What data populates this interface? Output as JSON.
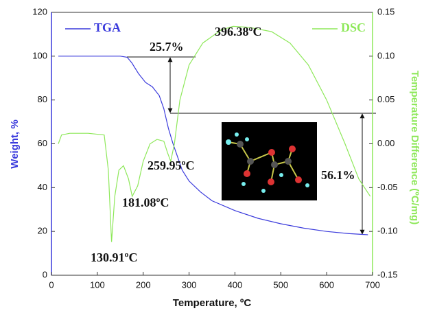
{
  "chart_data": {
    "type": "line",
    "xlabel": "Temperature, ºC",
    "ylabel": "Weight, %",
    "y2label": "Temperature Difference (ºC/mg)",
    "xlim": [
      0,
      700
    ],
    "xticks": [
      0,
      100,
      200,
      300,
      400,
      500,
      600,
      700
    ],
    "ylim": [
      0,
      120
    ],
    "yticks": [
      0,
      20,
      40,
      60,
      80,
      100,
      120
    ],
    "y2lim": [
      -0.15,
      0.15
    ],
    "y2ticks": [
      -0.15,
      {
        "value": -0.1,
        "label": "-0.10"
      },
      -0.05,
      {
        "value": 0,
        "label": "0.00"
      },
      0.05,
      {
        "value": 0.1,
        "label": "0.10"
      },
      0.15
    ],
    "series": [
      {
        "name": "TGA",
        "color": "#3a3adc",
        "x": [
          15,
          100,
          150,
          165,
          175,
          190,
          205,
          220,
          235,
          245,
          255,
          265,
          275,
          285,
          300,
          325,
          350,
          400,
          450,
          500,
          550,
          600,
          650,
          690
        ],
        "values": [
          100,
          100,
          100,
          99.5,
          97,
          92,
          88,
          86,
          82,
          76,
          67,
          60,
          54,
          48,
          43,
          38,
          34,
          29.5,
          26,
          23.5,
          21.5,
          20,
          19,
          18.5
        ]
      },
      {
        "name": "DSC",
        "color": "#8ee85a",
        "axis": "y2",
        "x": [
          15,
          22,
          40,
          80,
          115,
          124,
          131,
          138,
          147,
          157,
          168,
          176,
          181,
          188,
          200,
          215,
          230,
          245,
          253,
          260,
          268,
          280,
          300,
          330,
          370,
          396,
          430,
          480,
          520,
          560,
          600,
          640,
          670,
          695
        ],
        "values": [
          0.0,
          0.01,
          0.012,
          0.012,
          0.01,
          -0.03,
          -0.112,
          -0.06,
          -0.03,
          -0.025,
          -0.04,
          -0.06,
          -0.055,
          -0.048,
          -0.02,
          0.0,
          0.005,
          0.003,
          -0.01,
          -0.02,
          0.0,
          0.05,
          0.09,
          0.115,
          0.13,
          0.134,
          0.133,
          0.128,
          0.115,
          0.09,
          0.05,
          0.0,
          -0.04,
          -0.06
        ]
      }
    ],
    "annotations": [
      "25.7%",
      "396.38ºC",
      "259.95ºC",
      "181.08ºC",
      "130.91ºC",
      "56.1%"
    ]
  }
}
